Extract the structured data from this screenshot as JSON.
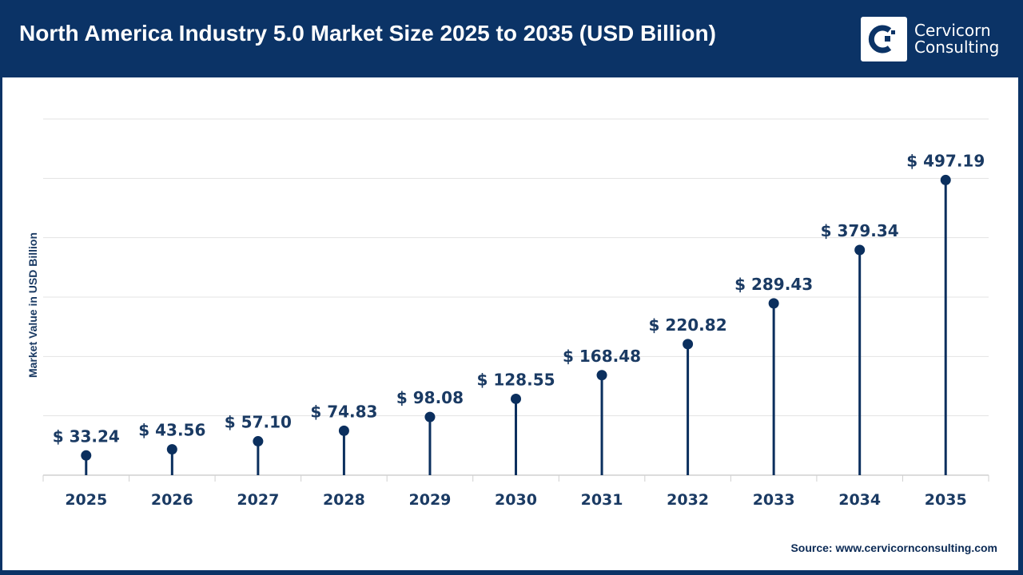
{
  "header": {
    "title": "North America Industry 5.0 Market Size 2025 to 2035 (USD Billion)",
    "logo_line1": "Cervicorn",
    "logo_line2": "Consulting"
  },
  "source": "Source: www.cervicornconsulting.com",
  "colors": {
    "header": "#0b3366",
    "marker": "#0b2f5e",
    "label": "#1a3a63",
    "grid": "#e3e3e3"
  },
  "chart_data": {
    "type": "lollipop",
    "title": "North America Industry 5.0 Market Size 2025 to 2035 (USD Billion)",
    "ylabel": "Market Value in USD Billion",
    "xlabel": "",
    "categories": [
      "2025",
      "2026",
      "2027",
      "2028",
      "2029",
      "2030",
      "2031",
      "2032",
      "2033",
      "2034",
      "2035"
    ],
    "values": [
      33.24,
      43.56,
      57.1,
      74.83,
      98.08,
      128.55,
      168.48,
      220.82,
      289.43,
      379.34,
      497.19
    ],
    "data_labels": [
      "$ 33.24",
      "$ 43.56",
      "$ 57.10",
      "$ 74.83",
      "$ 98.08",
      "$ 128.55",
      "$ 168.48",
      "$ 220.82",
      "$ 289.43",
      "$ 379.34",
      "$ 497.19"
    ],
    "ylim": [
      0,
      600
    ],
    "grid": true,
    "y_tick_labels_shown": false
  }
}
